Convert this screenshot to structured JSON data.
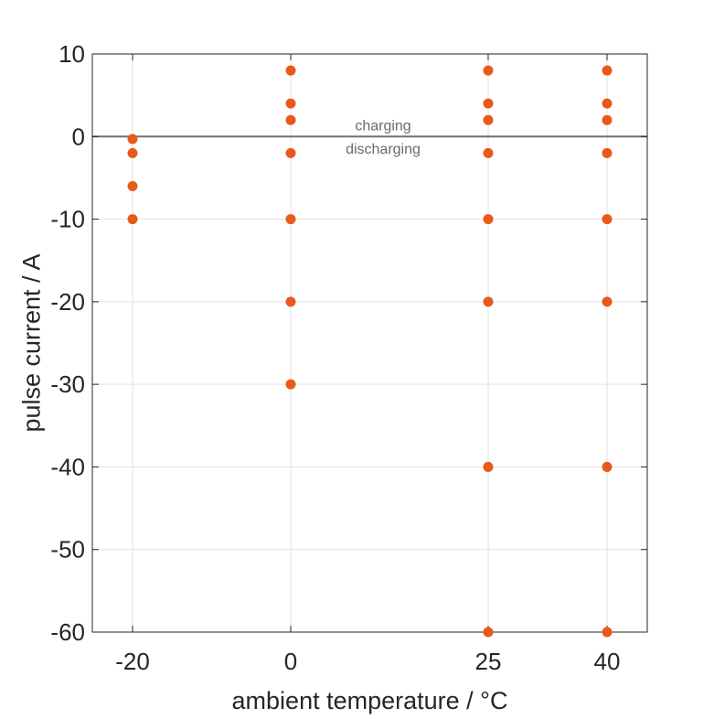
{
  "chart_data": {
    "type": "scatter",
    "xlabel": "ambient temperature / °C",
    "ylabel": "pulse current / A",
    "x_ticks": [
      -20,
      0,
      25,
      40
    ],
    "x_tick_labels": [
      "-20",
      "0",
      "25",
      "40"
    ],
    "y_ticks": [
      10,
      0,
      -10,
      -20,
      -30,
      -40,
      -50,
      -60
    ],
    "y_tick_labels": [
      "10",
      "0",
      "-10",
      "-20",
      "-30",
      "-40",
      "-50",
      "-60"
    ],
    "ylim": [
      -60,
      10
    ],
    "grid": true,
    "reference_line": {
      "y": 0,
      "color": "#707070"
    },
    "annotations": [
      {
        "text": "charging",
        "x": 12.5,
        "y": 1.3
      },
      {
        "text": "discharging",
        "x": 12.5,
        "y": -1.5
      }
    ],
    "marker_color": "#e8591a",
    "points": [
      {
        "x": -20,
        "y": -0.3
      },
      {
        "x": -20,
        "y": -2
      },
      {
        "x": -20,
        "y": -6
      },
      {
        "x": -20,
        "y": -10
      },
      {
        "x": 0,
        "y": 8
      },
      {
        "x": 0,
        "y": 4
      },
      {
        "x": 0,
        "y": 2
      },
      {
        "x": 0,
        "y": -2
      },
      {
        "x": 0,
        "y": -10
      },
      {
        "x": 0,
        "y": -20
      },
      {
        "x": 0,
        "y": -30
      },
      {
        "x": 25,
        "y": 8
      },
      {
        "x": 25,
        "y": 4
      },
      {
        "x": 25,
        "y": 2
      },
      {
        "x": 25,
        "y": -2
      },
      {
        "x": 25,
        "y": -10
      },
      {
        "x": 25,
        "y": -20
      },
      {
        "x": 25,
        "y": -40
      },
      {
        "x": 25,
        "y": -60
      },
      {
        "x": 40,
        "y": 8
      },
      {
        "x": 40,
        "y": 4
      },
      {
        "x": 40,
        "y": 2
      },
      {
        "x": 40,
        "y": -2
      },
      {
        "x": 40,
        "y": -10
      },
      {
        "x": 40,
        "y": -20
      },
      {
        "x": 40,
        "y": -40
      },
      {
        "x": 40,
        "y": -60
      }
    ]
  }
}
